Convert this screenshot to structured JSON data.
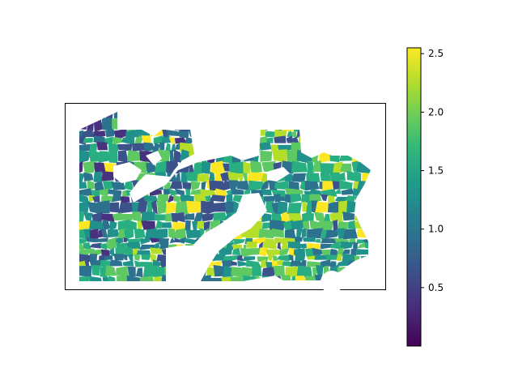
{
  "colorbar": {
    "min": 0.0,
    "max": 2.55,
    "ticks": [
      {
        "value": 0.5,
        "label": "0.5"
      },
      {
        "value": 1.0,
        "label": "1.0"
      },
      {
        "value": 1.5,
        "label": "1.5"
      },
      {
        "value": 2.0,
        "label": "2.0"
      },
      {
        "value": 2.5,
        "label": "2.5"
      }
    ],
    "colormap": "viridis",
    "stops": [
      "#440154",
      "#482878",
      "#3e4a89",
      "#31688e",
      "#26828e",
      "#1f9e89",
      "#35b779",
      "#6ece58",
      "#b5de2b",
      "#fde725"
    ]
  },
  "map": {
    "frame": true,
    "water_color": "#ffffff",
    "region_palette": [
      "#46327e",
      "#3b528b",
      "#2c728e",
      "#21918c",
      "#28ae80",
      "#5ec962",
      "#b5de2b",
      "#fde725"
    ]
  }
}
